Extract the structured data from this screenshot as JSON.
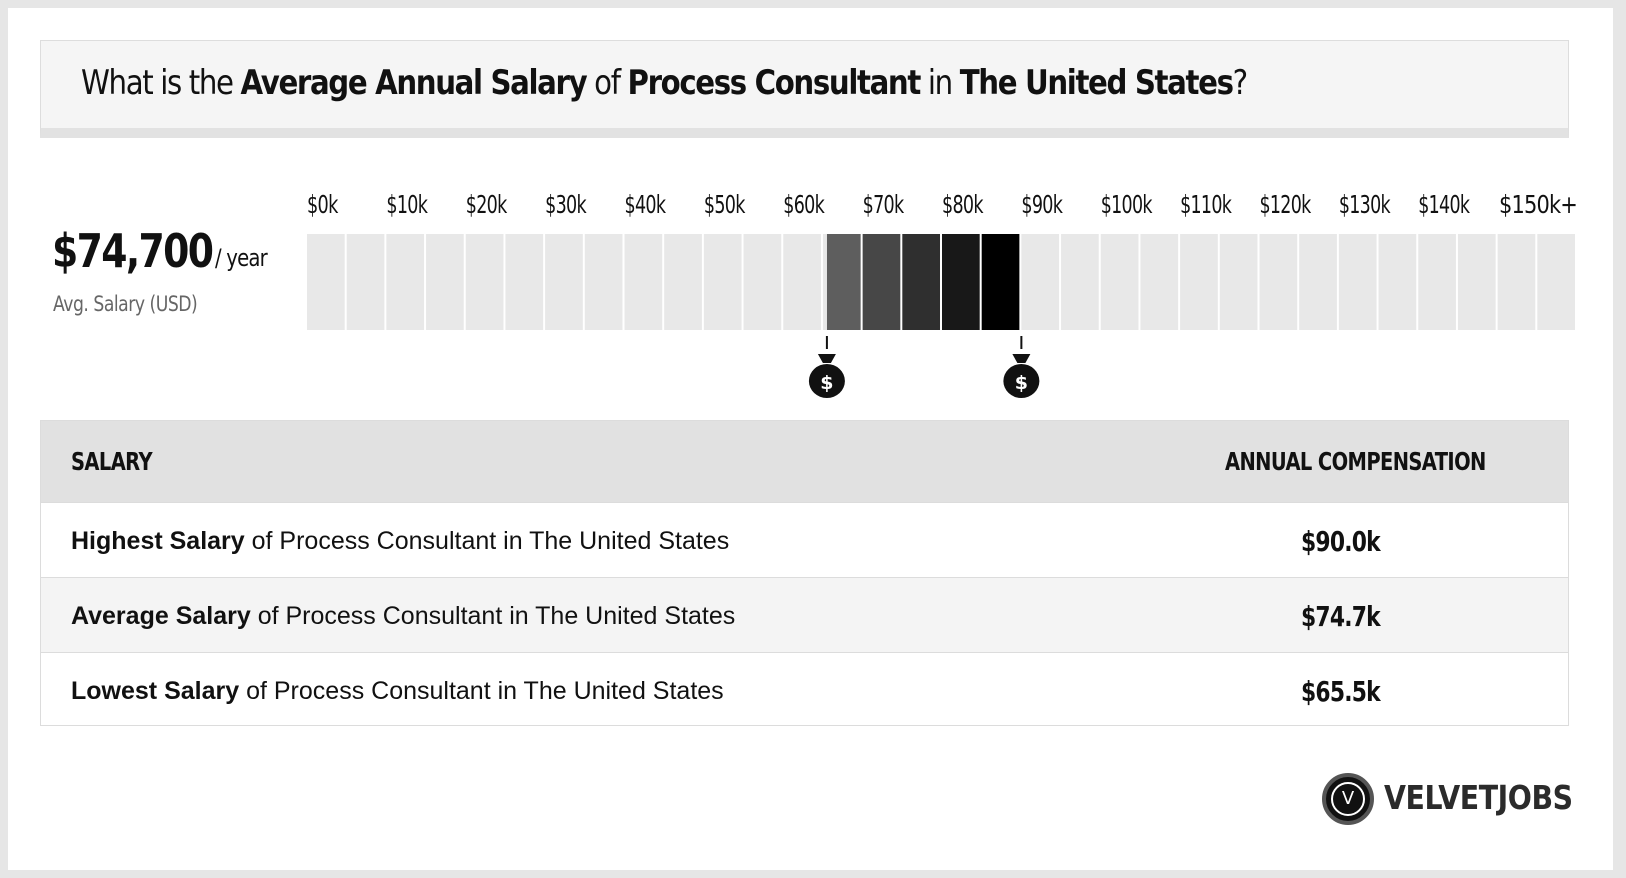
{
  "header": {
    "q1": "What is the ",
    "b1": "Average Annual Salary",
    "q2": " of ",
    "b2": "Process Consultant",
    "q3": " in ",
    "b3": "The United States",
    "q4": "?"
  },
  "summary": {
    "value": "$74,700",
    "unit": "/ year",
    "label": "Avg. Salary (USD)"
  },
  "chart_data": {
    "type": "bar",
    "title": "",
    "x_ticks": [
      "$0k",
      "$10k",
      "$20k",
      "$30k",
      "$40k",
      "$50k",
      "$60k",
      "$70k",
      "$80k",
      "$90k",
      "$100k",
      "$110k",
      "$120k",
      "$130k",
      "$140k",
      "$150k+"
    ],
    "range_low": 65.5,
    "range_high": 90.0,
    "average": 74.7,
    "xlim": [
      0,
      160
    ],
    "unit": "$k",
    "markers": [
      {
        "label": "$",
        "value": 65.5
      },
      {
        "label": "$",
        "value": 90.0
      }
    ]
  },
  "table": {
    "col1": "SALARY",
    "col2": "ANNUAL COMPENSATION",
    "rows": [
      {
        "bold": "Highest Salary",
        "rest": " of Process Consultant in The United States",
        "value": "$90.0k"
      },
      {
        "bold": "Average Salary",
        "rest": " of Process Consultant in The United States",
        "value": "$74.7k"
      },
      {
        "bold": "Lowest Salary",
        "rest": " of Process Consultant in The United States",
        "value": "$65.5k"
      }
    ]
  },
  "logo": {
    "letter": "V",
    "text": "VELVETJOBS",
    "icon": "velvetjobs-logo-icon"
  },
  "colors": {
    "background": "#e6e6e6",
    "cell": "#e8e8e8",
    "range_light": "#5e5e5e",
    "range_dark": "#000000"
  }
}
